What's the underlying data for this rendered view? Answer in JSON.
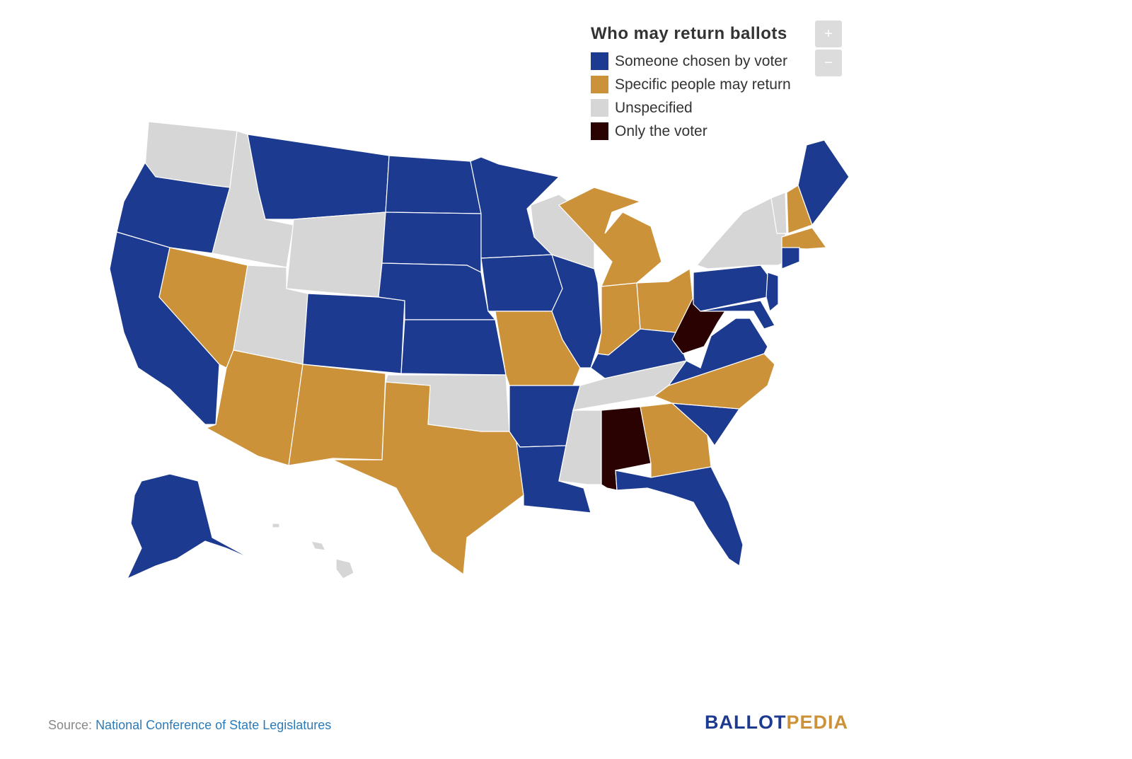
{
  "legend": {
    "title": "Who may return ballots",
    "items": [
      {
        "label": "Someone chosen by voter",
        "color": "#1c3a8f"
      },
      {
        "label": "Specific people may return",
        "color": "#cc923a"
      },
      {
        "label": "Unspecified",
        "color": "#d6d6d6"
      },
      {
        "label": "Only the voter",
        "color": "#2a0202"
      }
    ]
  },
  "zoom": {
    "in": "+",
    "out": "−"
  },
  "footer": {
    "source_label": "Source:",
    "source_link": "National Conference of State Legislatures",
    "logo": {
      "part1": "BALLOT",
      "part2": "PEDIA"
    }
  }
}
